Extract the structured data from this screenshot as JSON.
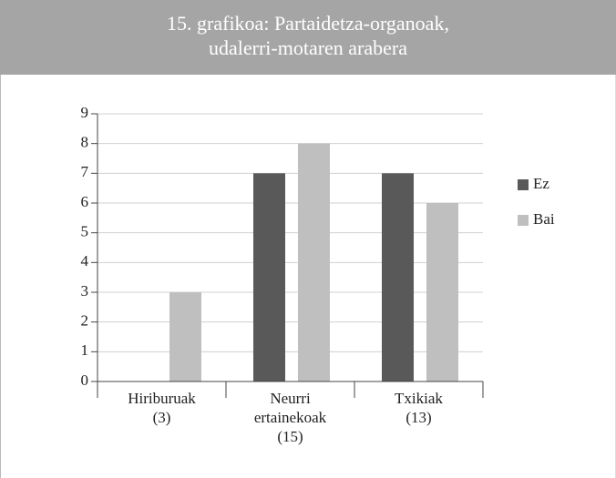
{
  "chart_data": {
    "type": "bar",
    "title": [
      "15. grafikoa: Partaidetza-organoak,",
      "udalerri-motaren arabera"
    ],
    "categories": [
      [
        "Hiriburuak",
        "(3)"
      ],
      [
        "Neurri",
        "ertainekoak",
        "(15)"
      ],
      [
        "Txikiak",
        "(13)"
      ]
    ],
    "series": [
      {
        "name": "Ez",
        "color": "#595959",
        "values": [
          0,
          7,
          7
        ]
      },
      {
        "name": "Bai",
        "color": "#bfbfbf",
        "values": [
          3,
          8,
          6
        ]
      }
    ],
    "ylim": [
      0,
      9
    ],
    "yticks": [
      0,
      1,
      2,
      3,
      4,
      5,
      6,
      7,
      8,
      9
    ],
    "grid": true,
    "legend": "right"
  }
}
